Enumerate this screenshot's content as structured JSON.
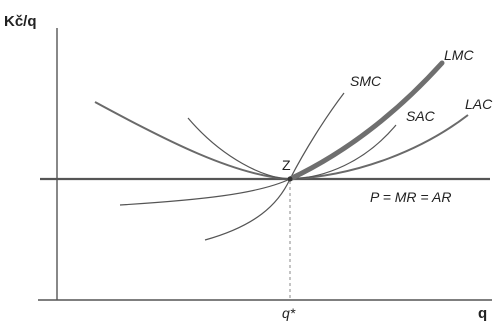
{
  "axes": {
    "y_label": "Kč/q",
    "x_label": "q"
  },
  "curves": {
    "lmc": "LMC",
    "smc": "SMC",
    "sac": "SAC",
    "lac": "LAC",
    "price": "P = MR = AR"
  },
  "point": {
    "label": "Z"
  },
  "x_tick": {
    "label": "q*"
  }
}
